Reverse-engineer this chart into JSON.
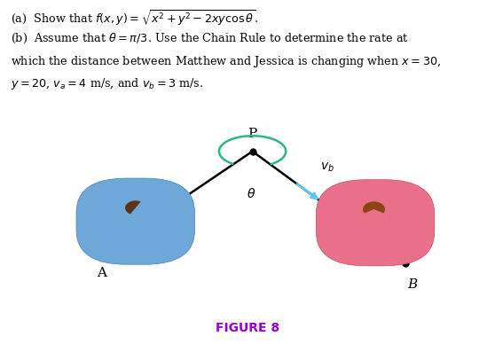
{
  "title": "FIGURE 8",
  "title_color": "#9400D3",
  "title_fontsize": 10,
  "bg_color": "#ffffff",
  "line1": "(a)  Show that $f(x, y) = \\sqrt{x^2 + y^2 - 2xy\\cos\\theta}$.",
  "line2a": "(b)  Assume that $\\theta = \\pi/3$. Use the Chain Rule to determine the rate at",
  "line2b": "which the distance between Matthew and Jessica is changing when $x = 30$,",
  "line2c": "$y = 20$, $v_a = 4$ m/s, and $v_b = 3$ m/s.",
  "text_fontsize": 9.2,
  "P": [
    0.5,
    0.93
  ],
  "A": [
    0.175,
    0.42
  ],
  "B": [
    0.835,
    0.36
  ],
  "line_color": "#000000",
  "line_width": 1.8,
  "dot_size": 5,
  "arrow_color": "#5bc8f5",
  "arc_color": "#2db87d",
  "label_fontsize": 10
}
